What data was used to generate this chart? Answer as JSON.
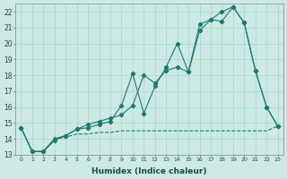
{
  "xlabel": "Humidex (Indice chaleur)",
  "background_color": "#cce9e5",
  "line_color": "#1a7a6e",
  "grid_color": "#aad4ce",
  "x_values": [
    0,
    1,
    2,
    3,
    4,
    5,
    6,
    7,
    8,
    9,
    10,
    11,
    12,
    13,
    14,
    15,
    16,
    17,
    18,
    19,
    20,
    21,
    22,
    23
  ],
  "line_flat": [
    14.7,
    13.2,
    13.2,
    14.0,
    14.1,
    14.3,
    14.3,
    14.4,
    14.4,
    14.5,
    14.5,
    14.5,
    14.5,
    14.5,
    14.5,
    14.5,
    14.5,
    14.5,
    14.5,
    14.5,
    14.5,
    14.5,
    14.5,
    14.8
  ],
  "line_diag": [
    14.7,
    13.2,
    13.2,
    14.0,
    14.2,
    14.6,
    14.9,
    15.1,
    15.3,
    15.5,
    16.1,
    18.0,
    17.5,
    18.3,
    18.5,
    18.2,
    20.8,
    21.5,
    22.0,
    22.3,
    21.3,
    18.3,
    16.0,
    14.8
  ],
  "line_zigzag": [
    14.7,
    13.2,
    13.2,
    13.9,
    14.2,
    14.6,
    14.7,
    14.9,
    15.1,
    16.1,
    18.1,
    15.6,
    17.3,
    18.5,
    20.0,
    18.2,
    21.2,
    21.5,
    21.4,
    22.3,
    21.3,
    18.3,
    16.0,
    14.8
  ],
  "ylim": [
    13,
    22.5
  ],
  "xlim": [
    -0.5,
    23.5
  ],
  "yticks": [
    13,
    14,
    15,
    16,
    17,
    18,
    19,
    20,
    21,
    22
  ],
  "xticks": [
    0,
    1,
    2,
    3,
    4,
    5,
    6,
    7,
    8,
    9,
    10,
    11,
    12,
    13,
    14,
    15,
    16,
    17,
    18,
    19,
    20,
    21,
    22,
    23
  ]
}
